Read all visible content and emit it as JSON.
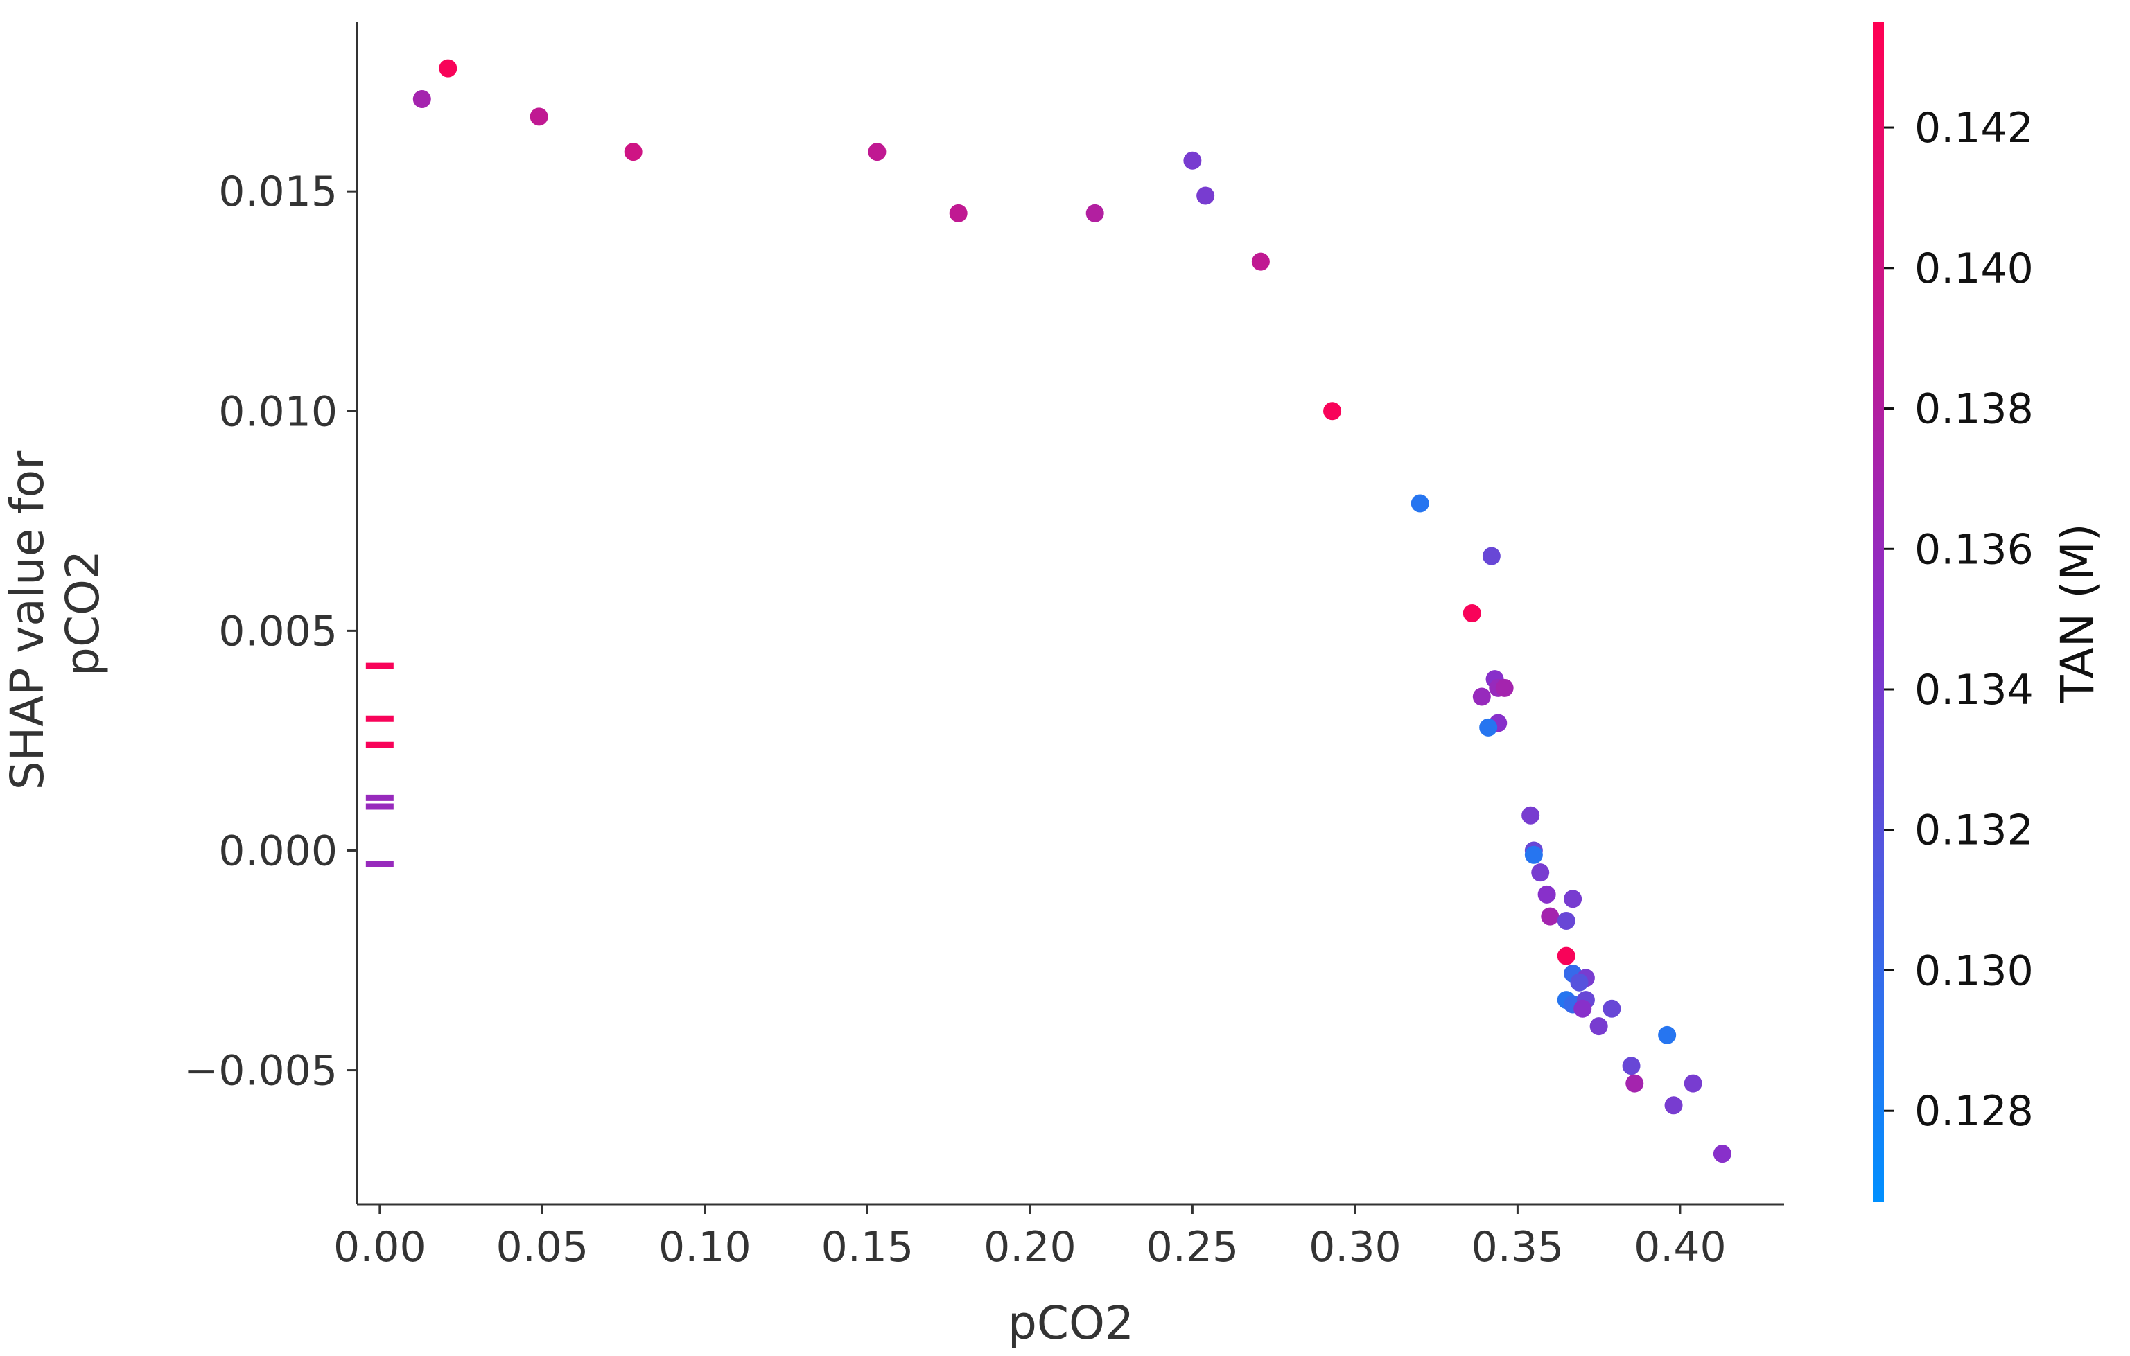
{
  "chart_data": {
    "type": "scatter",
    "title": "",
    "xlabel": "pCO2",
    "ylabel_lines": [
      "SHAP value for",
      "pCO2"
    ],
    "xlim": [
      -0.007,
      0.432
    ],
    "ylim": [
      -0.00805,
      0.01885
    ],
    "x_ticks": [
      0.0,
      0.05,
      0.1,
      0.15,
      0.2,
      0.25,
      0.3,
      0.35,
      0.4
    ],
    "x_tick_labels": [
      "0.00",
      "0.05",
      "0.10",
      "0.15",
      "0.20",
      "0.25",
      "0.30",
      "0.35",
      "0.40"
    ],
    "y_ticks": [
      -0.005,
      0.0,
      0.005,
      0.01,
      0.015
    ],
    "y_tick_labels": [
      "−0.005",
      "0.000",
      "0.005",
      "0.010",
      "0.015"
    ],
    "grid": false,
    "colorbar": {
      "label": "TAN (M)",
      "range": [
        0.1267,
        0.1435
      ],
      "ticks": [
        0.128,
        0.13,
        0.132,
        0.134,
        0.136,
        0.138,
        0.14,
        0.142
      ],
      "tick_labels": [
        "0.128",
        "0.130",
        "0.132",
        "0.134",
        "0.136",
        "0.138",
        "0.140",
        "0.142"
      ],
      "color_low": "#0090ff",
      "color_mid": "#8a2fc9",
      "color_high": "#ff0052"
    },
    "points": [
      {
        "x": 0.013,
        "y": 0.0171,
        "c": 0.137
      },
      {
        "x": 0.021,
        "y": 0.0178,
        "c": 0.143
      },
      {
        "x": 0.049,
        "y": 0.0167,
        "c": 0.139
      },
      {
        "x": 0.078,
        "y": 0.0159,
        "c": 0.14
      },
      {
        "x": 0.153,
        "y": 0.0159,
        "c": 0.139
      },
      {
        "x": 0.178,
        "y": 0.0145,
        "c": 0.139
      },
      {
        "x": 0.22,
        "y": 0.0145,
        "c": 0.138
      },
      {
        "x": 0.25,
        "y": 0.0157,
        "c": 0.134
      },
      {
        "x": 0.254,
        "y": 0.0149,
        "c": 0.134
      },
      {
        "x": 0.271,
        "y": 0.0134,
        "c": 0.139
      },
      {
        "x": 0.293,
        "y": 0.01,
        "c": 0.143
      },
      {
        "x": 0.32,
        "y": 0.0079,
        "c": 0.129
      },
      {
        "x": 0.336,
        "y": 0.0054,
        "c": 0.143
      },
      {
        "x": 0.342,
        "y": 0.0067,
        "c": 0.133
      },
      {
        "x": 0.339,
        "y": 0.0035,
        "c": 0.136
      },
      {
        "x": 0.343,
        "y": 0.0039,
        "c": 0.135
      },
      {
        "x": 0.344,
        "y": 0.0037,
        "c": 0.136
      },
      {
        "x": 0.346,
        "y": 0.0037,
        "c": 0.137
      },
      {
        "x": 0.344,
        "y": 0.0029,
        "c": 0.135
      },
      {
        "x": 0.341,
        "y": 0.0028,
        "c": 0.129
      },
      {
        "x": 0.354,
        "y": 0.0008,
        "c": 0.134
      },
      {
        "x": 0.355,
        "y": 0.0,
        "c": 0.133
      },
      {
        "x": 0.355,
        "y": -0.0001,
        "c": 0.129
      },
      {
        "x": 0.357,
        "y": -0.0005,
        "c": 0.134
      },
      {
        "x": 0.359,
        "y": -0.001,
        "c": 0.135
      },
      {
        "x": 0.367,
        "y": -0.0011,
        "c": 0.134
      },
      {
        "x": 0.36,
        "y": -0.0015,
        "c": 0.137
      },
      {
        "x": 0.365,
        "y": -0.0016,
        "c": 0.133
      },
      {
        "x": 0.365,
        "y": -0.0024,
        "c": 0.143
      },
      {
        "x": 0.367,
        "y": -0.0028,
        "c": 0.13
      },
      {
        "x": 0.371,
        "y": -0.0029,
        "c": 0.134
      },
      {
        "x": 0.369,
        "y": -0.003,
        "c": 0.132
      },
      {
        "x": 0.365,
        "y": -0.0034,
        "c": 0.129
      },
      {
        "x": 0.367,
        "y": -0.0035,
        "c": 0.13
      },
      {
        "x": 0.371,
        "y": -0.0034,
        "c": 0.133
      },
      {
        "x": 0.37,
        "y": -0.0036,
        "c": 0.135
      },
      {
        "x": 0.379,
        "y": -0.0036,
        "c": 0.133
      },
      {
        "x": 0.375,
        "y": -0.004,
        "c": 0.134
      },
      {
        "x": 0.396,
        "y": -0.0042,
        "c": 0.129
      },
      {
        "x": 0.385,
        "y": -0.0049,
        "c": 0.133
      },
      {
        "x": 0.386,
        "y": -0.0053,
        "c": 0.137
      },
      {
        "x": 0.404,
        "y": -0.0053,
        "c": 0.134
      },
      {
        "x": 0.398,
        "y": -0.0058,
        "c": 0.134
      },
      {
        "x": 0.413,
        "y": -0.0069,
        "c": 0.135
      }
    ],
    "rug": [
      {
        "y": 0.0042,
        "c": 0.143
      },
      {
        "y": 0.003,
        "c": 0.143
      },
      {
        "y": 0.0024,
        "c": 0.143
      },
      {
        "y": 0.0012,
        "c": 0.136
      },
      {
        "y": 0.001,
        "c": 0.136
      },
      {
        "y": -0.0003,
        "c": 0.136
      }
    ]
  }
}
